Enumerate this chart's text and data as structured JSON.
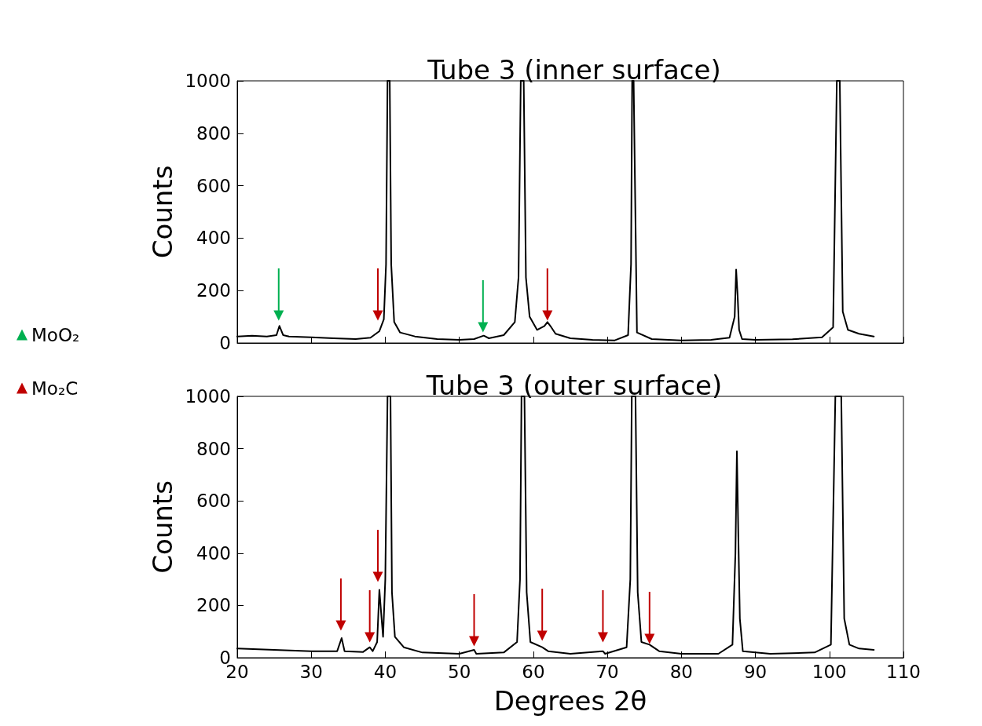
{
  "chart_data": [
    {
      "type": "line",
      "title": "Tube 3 (inner surface)",
      "ylabel": "Counts",
      "xlim": [
        20,
        110
      ],
      "xticks": [
        20,
        30,
        40,
        50,
        60,
        70,
        80,
        90,
        100,
        110
      ],
      "ylim": [
        0,
        1000
      ],
      "yticks": [
        0,
        200,
        400,
        600,
        800,
        1000
      ],
      "tick_labels": "y",
      "grid": false,
      "legend": "left",
      "series": [
        {
          "color": "#000000",
          "x": [
            20,
            22,
            24,
            25.3,
            25.7,
            26.2,
            27,
            30,
            33,
            36,
            38,
            39.2,
            39.8,
            40.1,
            40.3,
            40.6,
            40.8,
            41.2,
            42,
            44,
            47,
            50,
            52,
            53.3,
            54,
            56,
            57.5,
            58,
            58.3,
            58.7,
            59,
            59.5,
            60.5,
            61.5,
            61.9,
            62.3,
            63,
            65,
            68,
            71,
            72.8,
            73.2,
            73.35,
            73.55,
            74,
            76,
            80,
            84,
            86.5,
            87.2,
            87.4,
            87.6,
            87.8,
            88.2,
            90,
            95,
            99,
            100.5,
            101,
            101.4,
            101.8,
            102.5,
            104,
            106
          ],
          "values": [
            25,
            28,
            25,
            30,
            65,
            30,
            25,
            22,
            18,
            15,
            20,
            45,
            90,
            300,
            1000,
            1000,
            300,
            80,
            40,
            25,
            15,
            12,
            15,
            28,
            18,
            30,
            80,
            250,
            1000,
            1000,
            250,
            100,
            50,
            65,
            80,
            65,
            35,
            18,
            12,
            10,
            30,
            300,
            1000,
            1000,
            40,
            15,
            10,
            12,
            20,
            100,
            280,
            180,
            50,
            15,
            12,
            14,
            22,
            60,
            1000,
            1000,
            120,
            50,
            35,
            25
          ]
        },
        {
          "type": "scatter",
          "name": "MoO₂",
          "marker": "triangle",
          "color": "#00b050",
          "x": [
            25.6,
            53.2
          ],
          "values": [
            105,
            60
          ]
        },
        {
          "type": "scatter",
          "name": "Mo₂C",
          "marker": "triangle",
          "color": "#c00000",
          "x": [
            39.0,
            61.9
          ],
          "values": [
            105,
            105
          ]
        }
      ]
    },
    {
      "type": "line",
      "title": "Tube 3 (outer surface)",
      "ylabel": "Counts",
      "xlabel": "Degrees 2θ",
      "xlim": [
        20,
        110
      ],
      "xticks": [
        20,
        30,
        40,
        50,
        60,
        70,
        80,
        90,
        100,
        110
      ],
      "ylim": [
        0,
        1000
      ],
      "yticks": [
        0,
        200,
        400,
        600,
        800,
        1000
      ],
      "grid": false,
      "series": [
        {
          "color": "#000000",
          "x": [
            20,
            25,
            30,
            33.5,
            34.1,
            34.5,
            37,
            37.9,
            38.3,
            38.9,
            39.2,
            39.5,
            39.7,
            40,
            40.3,
            40.7,
            40.9,
            41.3,
            42.5,
            45,
            50,
            52,
            52.3,
            56,
            57.8,
            58.2,
            58.4,
            58.8,
            59.1,
            59.6,
            61.2,
            62,
            65,
            69.4,
            69.7,
            72.6,
            73.1,
            73.3,
            73.8,
            74.1,
            74.6,
            75.7,
            77,
            80,
            85,
            86.9,
            87.3,
            87.5,
            87.7,
            87.9,
            88.3,
            92,
            98,
            100.2,
            100.8,
            101.6,
            102,
            102.7,
            104,
            106
          ],
          "values": [
            35,
            30,
            25,
            25,
            75,
            25,
            22,
            40,
            25,
            60,
            260,
            150,
            80,
            300,
            1000,
            1000,
            250,
            80,
            40,
            20,
            15,
            30,
            15,
            20,
            60,
            300,
            1000,
            1000,
            250,
            60,
            40,
            25,
            15,
            25,
            15,
            40,
            300,
            1000,
            1000,
            250,
            60,
            50,
            25,
            15,
            15,
            50,
            400,
            790,
            460,
            150,
            25,
            15,
            20,
            50,
            1000,
            1000,
            150,
            50,
            35,
            30
          ]
        },
        {
          "type": "scatter",
          "marker": "triangle",
          "color": "#c00000",
          "x": [
            34.0,
            37.9,
            39.0,
            52.0,
            61.2,
            69.4,
            75.7
          ],
          "values": [
            123,
            78,
            309,
            63,
            84,
            78,
            72
          ]
        }
      ]
    }
  ]
}
